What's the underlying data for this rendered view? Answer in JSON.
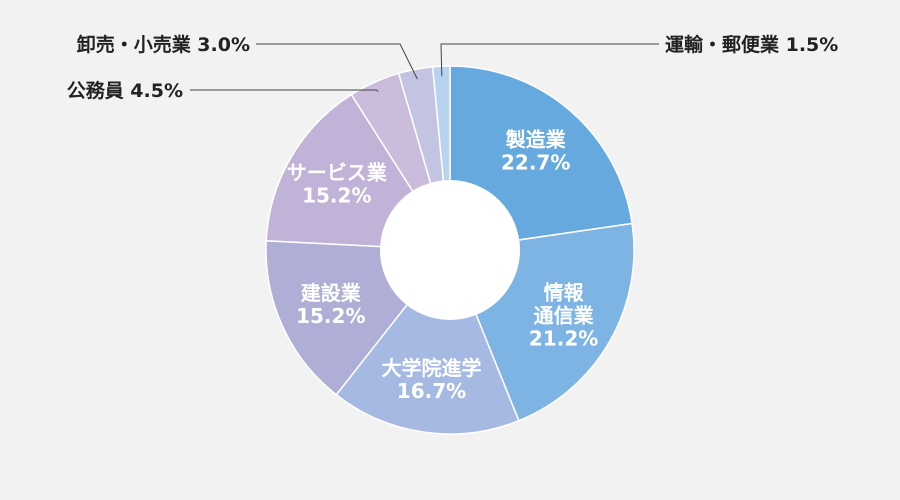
{
  "chart_data": {
    "type": "donut",
    "title": "",
    "slices": [
      {
        "label": "製造業",
        "label_lines": [
          "製造業"
        ],
        "value": 22.7,
        "value_text": "22.7%",
        "color": "#66a9de"
      },
      {
        "label": "情報通信業",
        "label_lines": [
          "情報",
          "通信業"
        ],
        "value": 21.2,
        "value_text": "21.2%",
        "color": "#7db4e4"
      },
      {
        "label": "大学院進学",
        "label_lines": [
          "大学院進学"
        ],
        "value": 16.7,
        "value_text": "16.7%",
        "color": "#a5b9e2"
      },
      {
        "label": "建設業",
        "label_lines": [
          "建設業"
        ],
        "value": 15.2,
        "value_text": "15.2%",
        "color": "#aeaed6"
      },
      {
        "label": "サービス業",
        "label_lines": [
          "サービス業"
        ],
        "value": 15.2,
        "value_text": "15.2%",
        "color": "#c1b3d7"
      },
      {
        "label": "公務員",
        "label_lines": [
          "公務員"
        ],
        "value": 4.5,
        "value_text": "4.5%",
        "color": "#cbbcdc"
      },
      {
        "label": "卸売・小売業",
        "label_lines": [
          "卸売・小売業"
        ],
        "value": 3.0,
        "value_text": "3.0%",
        "color": "#c3c4e2"
      },
      {
        "label": "運輸・郵便業",
        "label_lines": [
          "運輸・郵便業"
        ],
        "value": 1.5,
        "value_text": "1.5%",
        "color": "#b7d3ef"
      }
    ]
  }
}
